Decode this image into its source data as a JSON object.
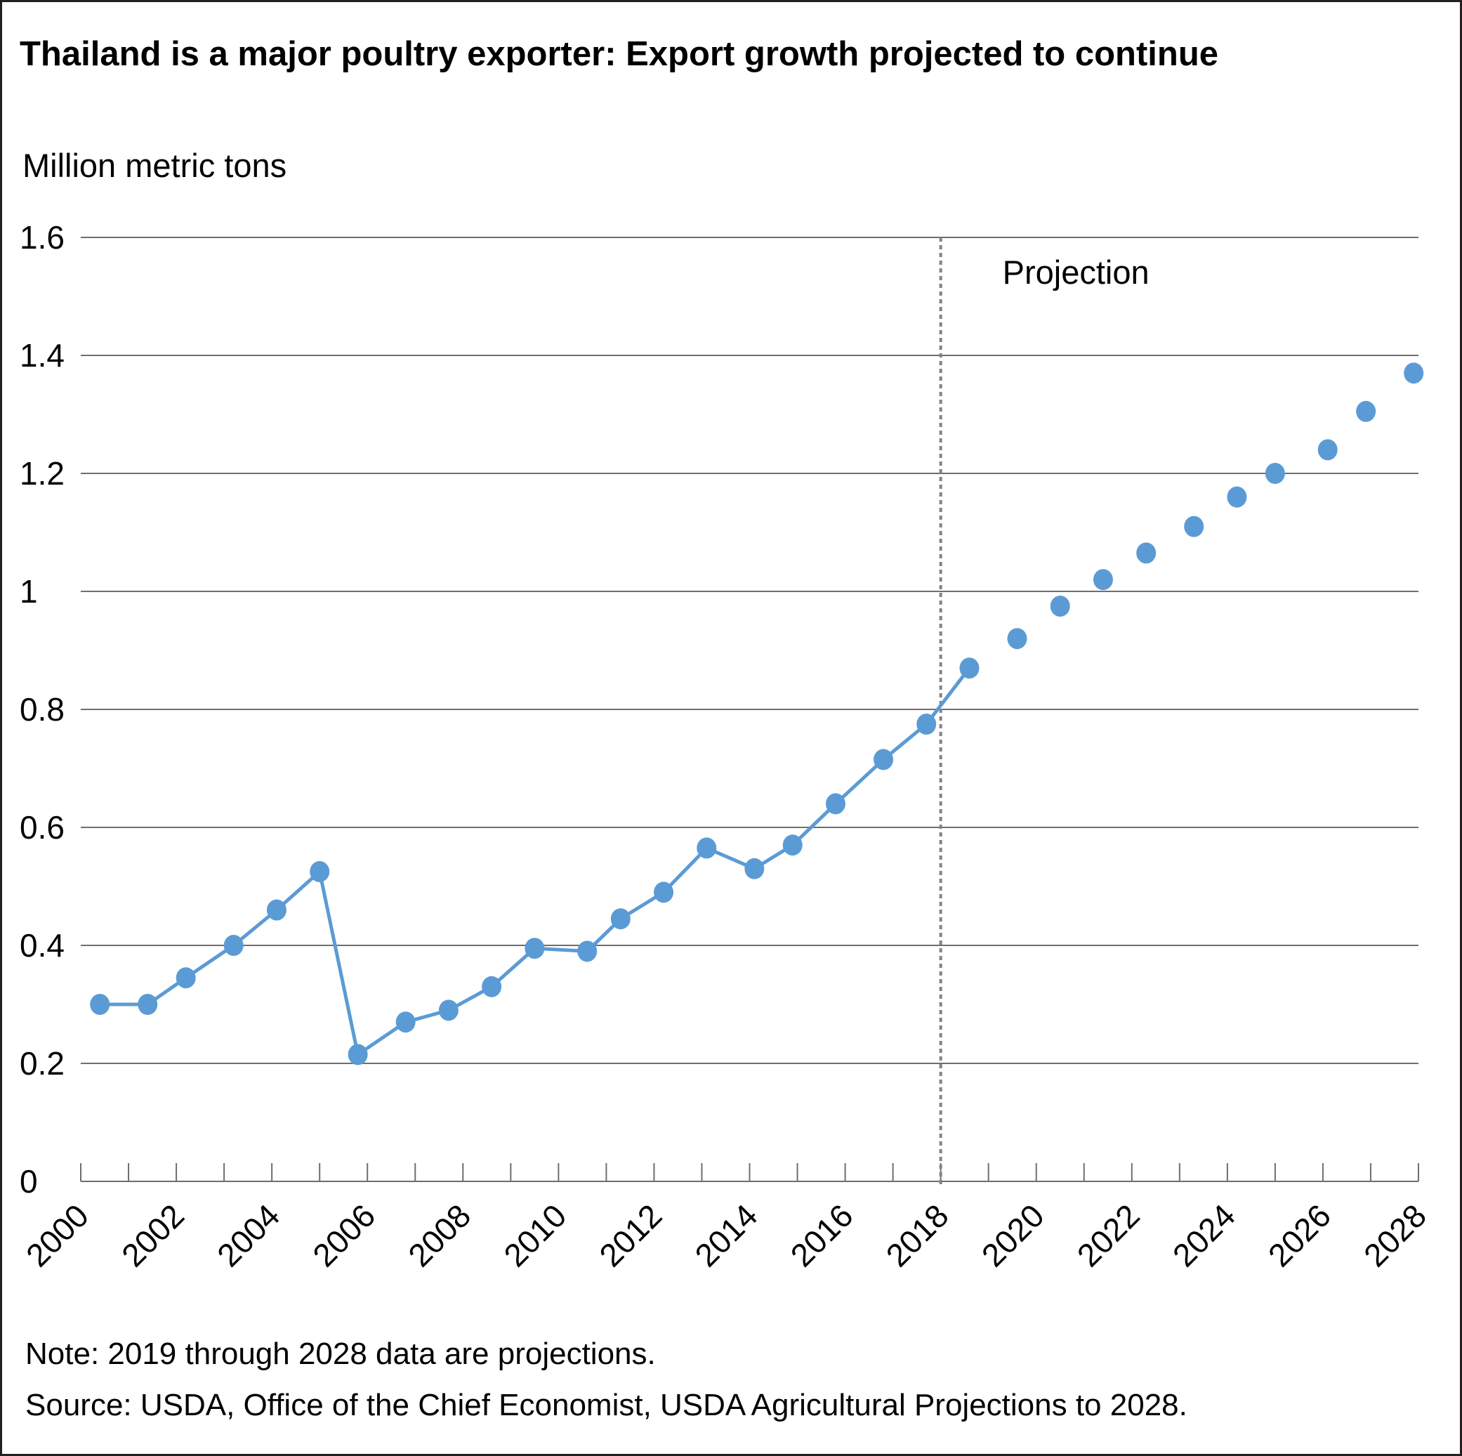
{
  "chart_data": {
    "type": "line",
    "title": "Thailand is a major poultry exporter: Export growth projected to continue",
    "ylabel": "Million metric tons",
    "xlabel": "",
    "ylim": [
      0,
      1.6
    ],
    "xlim": [
      2000,
      2028
    ],
    "y_ticks": [
      "0",
      "0.2",
      "0.4",
      "0.6",
      "0.8",
      "1",
      "1.2",
      "1.4",
      "1.6"
    ],
    "x_ticks": [
      "2000",
      "2002",
      "2004",
      "2006",
      "2008",
      "2010",
      "2012",
      "2014",
      "2016",
      "2018",
      "2020",
      "2022",
      "2024",
      "2026",
      "2028"
    ],
    "grid": true,
    "projection_start": 2018,
    "projection_label": "Projection",
    "series": [
      {
        "color": "#5b9bd5",
        "x": [
          2000.4,
          2001.4,
          2002.2,
          2003.2,
          2004.1,
          2005.0,
          2005.8,
          2006.8,
          2007.7,
          2008.6,
          2009.5,
          2010.6,
          2011.3,
          2012.2,
          2013.1,
          2014.1,
          2014.9,
          2015.8,
          2016.8,
          2017.7,
          2018.6
        ],
        "values": [
          0.3,
          0.3,
          0.345,
          0.4,
          0.46,
          0.525,
          0.215,
          0.27,
          0.29,
          0.33,
          0.395,
          0.39,
          0.445,
          0.49,
          0.565,
          0.53,
          0.57,
          0.64,
          0.715,
          0.775,
          0.87
        ],
        "style": "solid line with markers"
      },
      {
        "color": "#5b9bd5",
        "x": [
          2019.6,
          2020.5,
          2021.4,
          2022.3,
          2023.3,
          2024.2,
          2025.0,
          2026.1,
          2026.9,
          2027.9
        ],
        "values": [
          0.92,
          0.975,
          1.02,
          1.065,
          1.11,
          1.16,
          1.2,
          1.24,
          1.305,
          1.37
        ],
        "style": "markers only"
      }
    ]
  },
  "notes": {
    "note": "Note: 2019 through 2028 data are projections.",
    "source": "Source: USDA, Office of the Chief Economist, USDA Agricultural Projections to 2028."
  }
}
